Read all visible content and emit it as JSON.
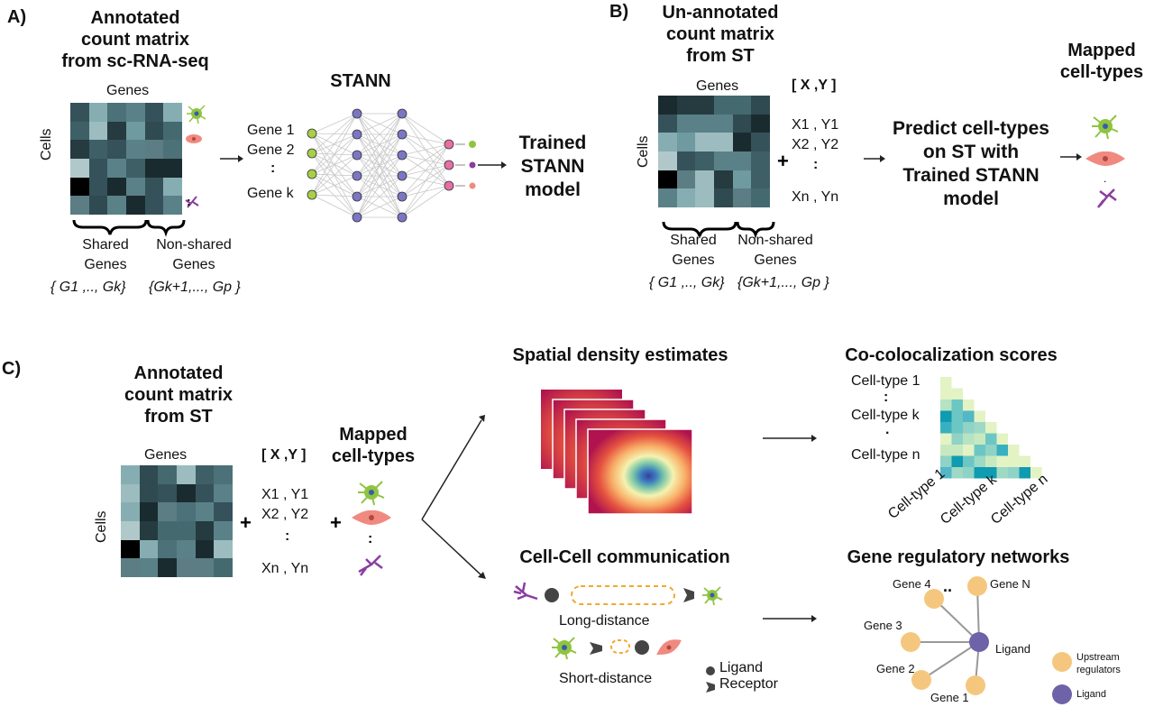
{
  "panels": {
    "a": {
      "letter": "A)",
      "title_lines": [
        "Annotated",
        "count matrix",
        "from sc-RNA-seq"
      ],
      "genes_label": "Genes",
      "cells_label": "Cells",
      "shared_label": [
        "Shared",
        "Genes"
      ],
      "nonshared_label": [
        "Non-shared",
        "Genes"
      ],
      "shared_set": "{ G1 ,.., Gk}",
      "nonshared_set": "{Gk+1,..., Gp }",
      "network_title": "STANN",
      "inputs": [
        "Gene 1",
        "Gene 2",
        ":",
        "Gene k"
      ],
      "result_lines": [
        "Trained",
        "STANN",
        "model"
      ]
    },
    "b": {
      "letter": "B)",
      "title_lines": [
        "Un-annotated",
        "count matrix",
        "from ST"
      ],
      "genes_label": "Genes",
      "cells_label": "Cells",
      "coords_header": "[ X ,Y ]",
      "coords": [
        "X1 , Y1",
        "X2 , Y2",
        ":",
        "Xn , Yn"
      ],
      "shared_label": [
        "Shared",
        "Genes"
      ],
      "nonshared_label": [
        "Non-shared",
        "Genes"
      ],
      "shared_set": "{ G1 ,.., Gk}",
      "nonshared_set": "{Gk+1,..., Gp }",
      "predict_lines": [
        "Predict cell-types",
        "on ST with",
        "Trained STANN",
        "model"
      ],
      "mapped_lines": [
        "Mapped",
        "cell-types"
      ]
    },
    "c": {
      "letter": "C)",
      "title_lines": [
        "Annotated",
        "count matrix",
        "from ST"
      ],
      "genes_label": "Genes",
      "cells_label": "Cells",
      "coords_header": "[ X ,Y ]",
      "coords": [
        "X1 , Y1",
        "X2 , Y2",
        ":",
        "Xn , Yn"
      ],
      "mapped_lines": [
        "Mapped",
        "cell-types"
      ],
      "density_title": "Spatial density estimates",
      "coloc_title": "Co-colocalization scores",
      "coloc_rows": [
        "Cell-type 1",
        ":",
        "Cell-type k",
        ".",
        "Cell-type n"
      ],
      "coloc_cols": [
        "Cell-type 1",
        "Cell-type k",
        "Cell-type n"
      ],
      "ccc_title": "Cell-Cell communication",
      "long_distance": "Long-distance",
      "short_distance": "Short-distance",
      "legend_ligand": "Ligand",
      "legend_receptor": "Receptor",
      "grn_title": "Gene regulatory networks",
      "grn_genes": [
        "Gene 4",
        "Gene N",
        "Gene 3",
        "Gene 2",
        "Gene 1"
      ],
      "grn_ellipsis": "..",
      "grn_hub": "Ligand",
      "grn_legend_upstream": [
        "Upstream",
        "regulators"
      ],
      "grn_legend_ligand": "Ligand"
    }
  },
  "colors": {
    "upstream": "#f5c77e",
    "ligand_node": "#6e62a8",
    "nn_input": "#a8cf45",
    "nn_hidden": "#7b76c4",
    "nn_output": "#e76fa5"
  }
}
